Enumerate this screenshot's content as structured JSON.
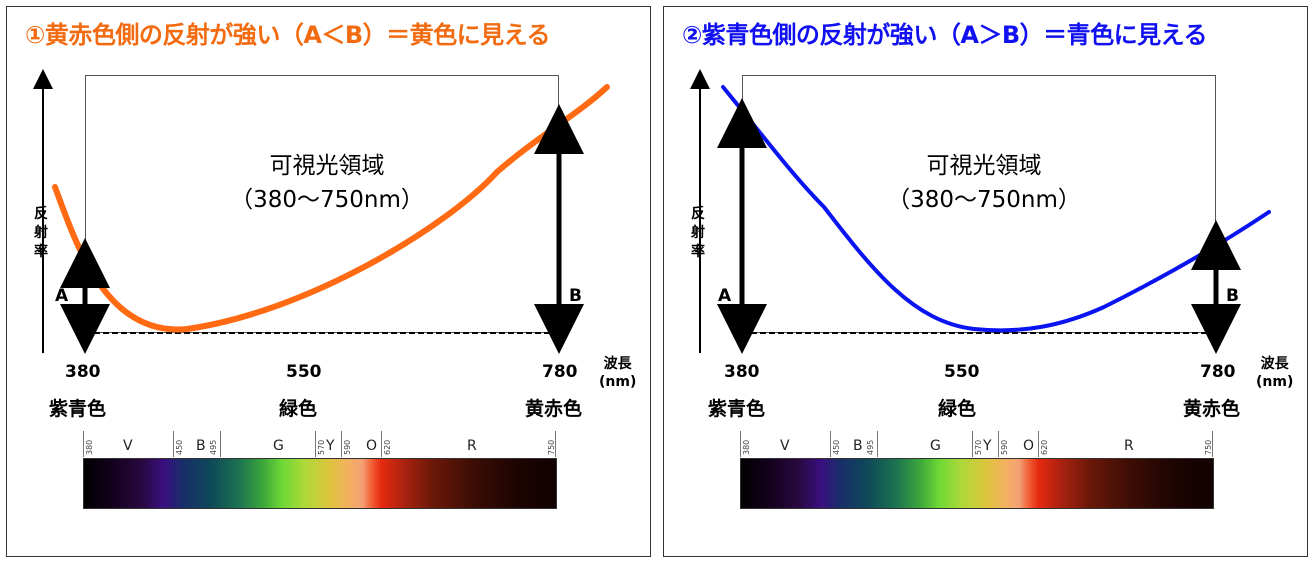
{
  "left": {
    "title": "①黄赤色側の反射が強い（A＜B）＝黄色に見える",
    "title_color": "#F26B10",
    "curve_color": "#FF6A13",
    "region_line1": "可視光領域",
    "region_line2": "（380～750nm）",
    "arrow_a_label": "A",
    "arrow_b_label": "B",
    "y_axis_label": "反射率",
    "x_axis_label_line1": "波長",
    "x_axis_label_line2": "(nm)",
    "ticks": [
      "380",
      "550",
      "780"
    ],
    "color_bands": [
      "紫青色",
      "緑色",
      "黄赤色"
    ]
  },
  "right": {
    "title": "②紫青色側の反射が強い（A＞B）＝青色に見える",
    "title_color": "#1010F0",
    "curve_color": "#0A14F0",
    "region_line1": "可視光領域",
    "region_line2": "（380～750nm）",
    "arrow_a_label": "A",
    "arrow_b_label": "B",
    "y_axis_label": "反射率",
    "x_axis_label_line1": "波長",
    "x_axis_label_line2": "(nm)",
    "ticks": [
      "380",
      "550",
      "780"
    ],
    "color_bands": [
      "紫青色",
      "緑色",
      "黄赤色"
    ]
  },
  "spectrum": {
    "wavelength_marks": [
      "380",
      "450",
      "495",
      "570",
      "590",
      "620",
      "750"
    ],
    "band_letters": [
      "V",
      "B",
      "G",
      "Y",
      "O",
      "R"
    ]
  }
}
